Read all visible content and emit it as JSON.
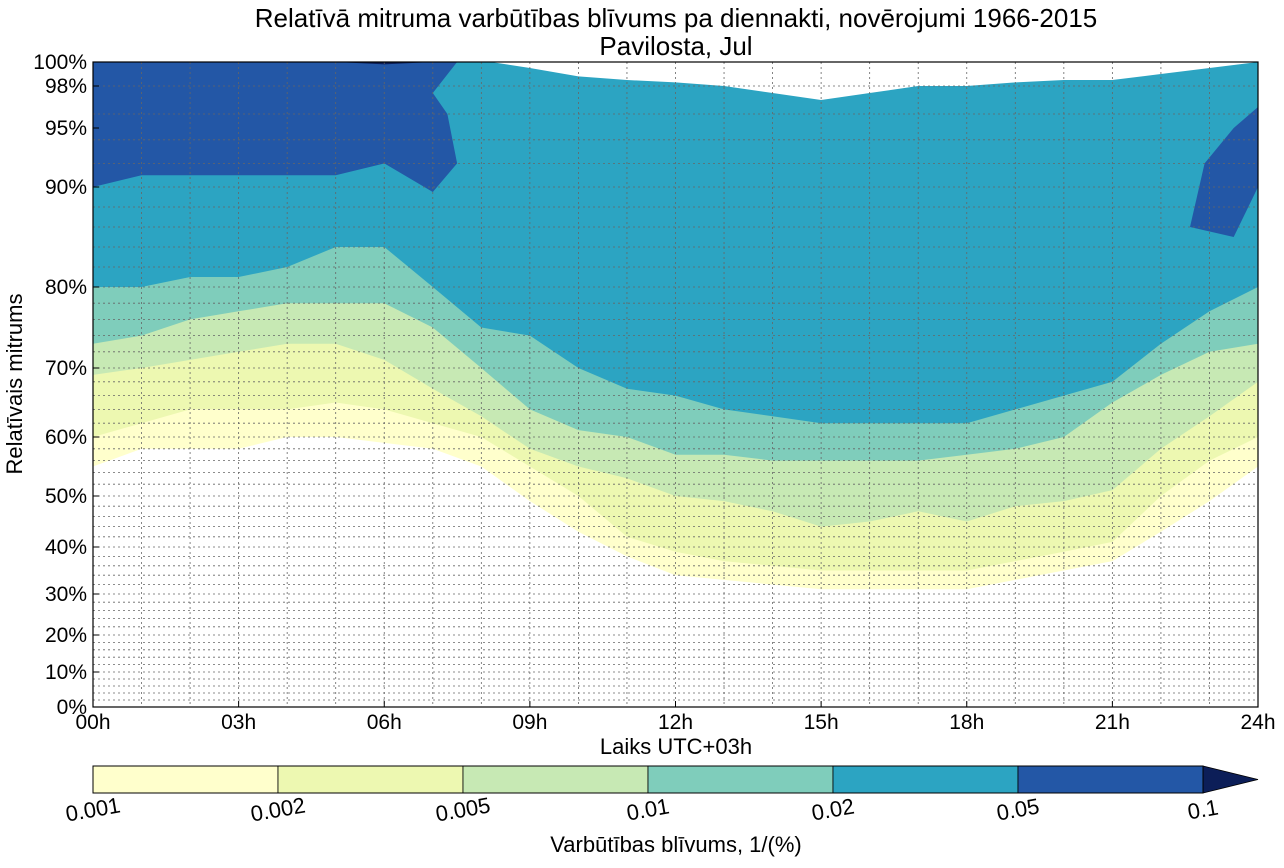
{
  "chart_data": {
    "type": "contour",
    "title": "Relatīvā mitruma varbūtības blīvums pa diennakti, novērojumi 1966-2015",
    "subtitle": "Pavilosta, Jul",
    "xlabel": "Laiks UTC+03h",
    "ylabel": "Relatīvais mitrums",
    "x_ticks": [
      "00h",
      "03h",
      "06h",
      "09h",
      "12h",
      "15h",
      "18h",
      "21h",
      "24h"
    ],
    "x_range": [
      0,
      24
    ],
    "y_ticks": [
      {
        "value": 0,
        "label": "0%"
      },
      {
        "value": 10,
        "label": "10%"
      },
      {
        "value": 20,
        "label": "20%"
      },
      {
        "value": 30,
        "label": "30%"
      },
      {
        "value": 40,
        "label": "40%"
      },
      {
        "value": 50,
        "label": "50%"
      },
      {
        "value": 60,
        "label": "60%"
      },
      {
        "value": 70,
        "label": "70%"
      },
      {
        "value": 80,
        "label": "80%"
      },
      {
        "value": 90,
        "label": "90%"
      },
      {
        "value": 95,
        "label": "95%"
      },
      {
        "value": 98,
        "label": "98%"
      },
      {
        "value": 100,
        "label": "100%"
      }
    ],
    "y_scale": "nonlinear (stretched near 100%)",
    "grid": true,
    "colorbar": {
      "label": "Varbūtības blīvums, 1/(%)",
      "boundaries": [
        "0.001",
        "0.002",
        "0.005",
        "0.01",
        "0.02",
        "0.05",
        "0.1"
      ],
      "colors": [
        "#ffffcc",
        "#edf8b1",
        "#c7e9b4",
        "#7fcdbb",
        "#2ca4c2",
        "#2357a6",
        "#0c1e58"
      ],
      "extend": "max"
    },
    "contour_bands": [
      {
        "level": "0.001",
        "color": "#ffffcc",
        "lower_boundary": [
          [
            0,
            55
          ],
          [
            1,
            58
          ],
          [
            2,
            58
          ],
          [
            3,
            58
          ],
          [
            4,
            60
          ],
          [
            5,
            60
          ],
          [
            6,
            59
          ],
          [
            7,
            58
          ],
          [
            8,
            55
          ],
          [
            9,
            49
          ],
          [
            10,
            43
          ],
          [
            11,
            38
          ],
          [
            12,
            34
          ],
          [
            13,
            33
          ],
          [
            14,
            32
          ],
          [
            15,
            31
          ],
          [
            16,
            31
          ],
          [
            17,
            31
          ],
          [
            18,
            31
          ],
          [
            19,
            33
          ],
          [
            20,
            35
          ],
          [
            21,
            37
          ],
          [
            22,
            43
          ],
          [
            23,
            49
          ],
          [
            24,
            55
          ]
        ]
      },
      {
        "level": "0.002",
        "color": "#edf8b1",
        "lower_boundary": [
          [
            0,
            60
          ],
          [
            1,
            62
          ],
          [
            2,
            64
          ],
          [
            3,
            64
          ],
          [
            4,
            64
          ],
          [
            5,
            65
          ],
          [
            6,
            64
          ],
          [
            7,
            62
          ],
          [
            8,
            60
          ],
          [
            9,
            55
          ],
          [
            10,
            50
          ],
          [
            11,
            42
          ],
          [
            12,
            39
          ],
          [
            13,
            37
          ],
          [
            14,
            36
          ],
          [
            15,
            35
          ],
          [
            16,
            35
          ],
          [
            17,
            35
          ],
          [
            18,
            35
          ],
          [
            19,
            37
          ],
          [
            20,
            39
          ],
          [
            21,
            41
          ],
          [
            22,
            50
          ],
          [
            23,
            56
          ],
          [
            24,
            60
          ]
        ]
      },
      {
        "level": "0.005",
        "color": "#c7e9b4",
        "lower_boundary": [
          [
            0,
            69
          ],
          [
            1,
            70
          ],
          [
            2,
            71
          ],
          [
            3,
            72
          ],
          [
            4,
            73
          ],
          [
            5,
            73
          ],
          [
            6,
            71
          ],
          [
            7,
            67
          ],
          [
            8,
            63
          ],
          [
            9,
            58
          ],
          [
            10,
            55
          ],
          [
            11,
            53
          ],
          [
            12,
            50
          ],
          [
            13,
            49
          ],
          [
            14,
            47
          ],
          [
            15,
            44
          ],
          [
            16,
            45
          ],
          [
            17,
            47
          ],
          [
            18,
            45
          ],
          [
            19,
            48
          ],
          [
            20,
            49
          ],
          [
            21,
            51
          ],
          [
            22,
            58
          ],
          [
            23,
            63
          ],
          [
            24,
            68
          ]
        ]
      },
      {
        "level": "0.01",
        "color": "#7fcdbb",
        "lower_boundary": [
          [
            0,
            73
          ],
          [
            1,
            74
          ],
          [
            2,
            76
          ],
          [
            3,
            77
          ],
          [
            4,
            78
          ],
          [
            5,
            78
          ],
          [
            6,
            78
          ],
          [
            7,
            75
          ],
          [
            8,
            70
          ],
          [
            9,
            64
          ],
          [
            10,
            61
          ],
          [
            11,
            60
          ],
          [
            12,
            57
          ],
          [
            13,
            57
          ],
          [
            14,
            56
          ],
          [
            15,
            56
          ],
          [
            16,
            56
          ],
          [
            17,
            56
          ],
          [
            18,
            57
          ],
          [
            19,
            58
          ],
          [
            20,
            60
          ],
          [
            21,
            65
          ],
          [
            22,
            69
          ],
          [
            23,
            72
          ],
          [
            24,
            73
          ]
        ]
      },
      {
        "level": "0.02",
        "color": "#2ca4c2",
        "lower_boundary": [
          [
            0,
            80
          ],
          [
            1,
            80
          ],
          [
            2,
            81
          ],
          [
            3,
            81
          ],
          [
            4,
            82
          ],
          [
            5,
            84
          ],
          [
            6,
            84
          ],
          [
            7,
            80
          ],
          [
            8,
            75
          ],
          [
            9,
            74
          ],
          [
            10,
            70
          ],
          [
            11,
            67
          ],
          [
            12,
            66
          ],
          [
            13,
            64
          ],
          [
            14,
            63
          ],
          [
            15,
            62
          ],
          [
            16,
            62
          ],
          [
            17,
            62
          ],
          [
            18,
            62
          ],
          [
            19,
            64
          ],
          [
            20,
            66
          ],
          [
            21,
            68
          ],
          [
            22,
            73
          ],
          [
            23,
            77
          ],
          [
            24,
            80
          ]
        ]
      },
      {
        "level": "0.05",
        "color": "#2357a6",
        "lower_boundary": [
          [
            0,
            90
          ],
          [
            1,
            91
          ],
          [
            2,
            91
          ],
          [
            3,
            91
          ],
          [
            4,
            91
          ],
          [
            5,
            91
          ],
          [
            6,
            92
          ],
          [
            7,
            89.5
          ],
          [
            7.5,
            92
          ],
          [
            7.3,
            96
          ],
          [
            7,
            97.5
          ],
          [
            7.5,
            100
          ],
          [
            0,
            100
          ]
        ]
      },
      {
        "level": "0.05",
        "color": "#2357a6",
        "lower_boundary": [
          [
            22.6,
            86
          ],
          [
            23.5,
            85
          ],
          [
            24,
            90
          ],
          [
            24,
            96.5
          ],
          [
            23.5,
            95
          ],
          [
            22.9,
            92
          ]
        ]
      },
      {
        "level": "0.1",
        "color": "#0c1e58",
        "lower_boundary": [
          [
            5,
            100
          ],
          [
            6,
            99.8
          ],
          [
            7,
            100
          ]
        ]
      }
    ],
    "upper_zero_region": [
      [
        8.2,
        100
      ],
      [
        9,
        99.5
      ],
      [
        10,
        98.8
      ],
      [
        11,
        98.5
      ],
      [
        12,
        98.3
      ],
      [
        13,
        98
      ],
      [
        14,
        97.5
      ],
      [
        15,
        97
      ],
      [
        16,
        97.5
      ],
      [
        17,
        98
      ],
      [
        18,
        98
      ],
      [
        19,
        98.3
      ],
      [
        20,
        98.5
      ],
      [
        21,
        98.5
      ],
      [
        22,
        99
      ],
      [
        23,
        99.5
      ],
      [
        24,
        100
      ]
    ]
  }
}
